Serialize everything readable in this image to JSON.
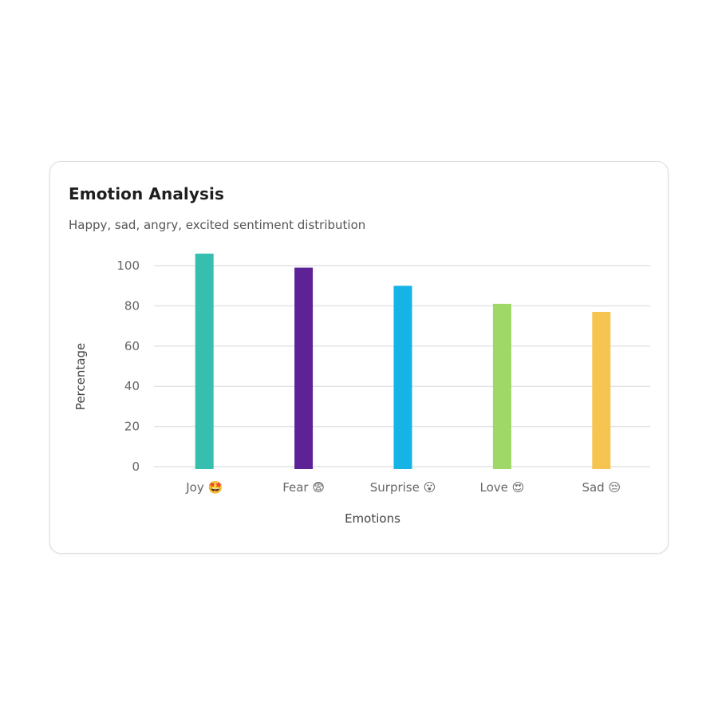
{
  "card": {
    "title": "Emotion Analysis",
    "subtitle": "Happy, sad, angry, excited sentiment distribution"
  },
  "chart_data": {
    "type": "bar",
    "title": "Emotion Analysis",
    "subtitle": "Happy, sad, angry, excited sentiment distribution",
    "categories": [
      "Joy 🤩",
      "Fear 😨",
      "Surprise 😮",
      "Love 😍",
      "Sad 😔"
    ],
    "values": [
      106,
      99,
      90,
      81,
      77
    ],
    "colors": [
      "#36bfae",
      "#5c2296",
      "#16b4e6",
      "#9fd867",
      "#f5c451"
    ],
    "xlabel": "Emotions",
    "ylabel": "Percentage",
    "yticks": [
      0,
      20,
      40,
      60,
      80,
      100
    ],
    "ylim": [
      0,
      106
    ],
    "grid": true,
    "legend": "none",
    "gridline_color": "#e4e4e4"
  }
}
